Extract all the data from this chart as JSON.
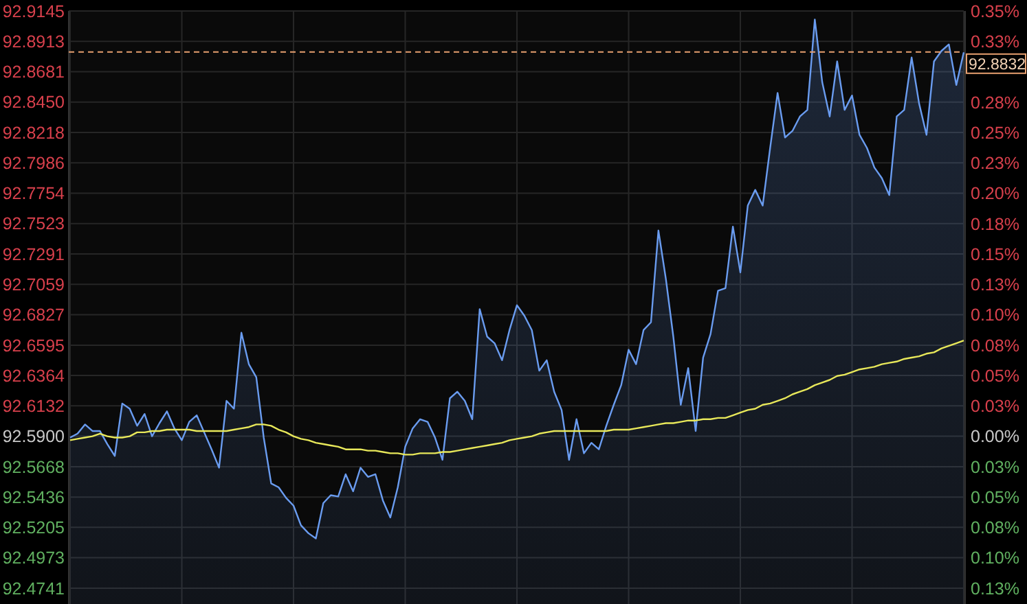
{
  "chart_data": {
    "type": "area",
    "categories": [
      null,
      null,
      null,
      null,
      null,
      null,
      null,
      null,
      null,
      null,
      null,
      null,
      null,
      null,
      null,
      null,
      null,
      null,
      null,
      null,
      null,
      null,
      null,
      null,
      null,
      null,
      null,
      null,
      null,
      null,
      null,
      null,
      null,
      null,
      null,
      null,
      null,
      null,
      null,
      null,
      null,
      null,
      null,
      null,
      null,
      null,
      null,
      null,
      null,
      null,
      null,
      null,
      null,
      null,
      null,
      null,
      null,
      null,
      null,
      null,
      null,
      null,
      null,
      null,
      null,
      null,
      null,
      null,
      null,
      null,
      null,
      null,
      null,
      null,
      null,
      null,
      null,
      null,
      null,
      null,
      null,
      null,
      null,
      null,
      null,
      null,
      null,
      null,
      null,
      null,
      null,
      null,
      null,
      null,
      null,
      null,
      null,
      null,
      null,
      null,
      null,
      null,
      null,
      null,
      null,
      null,
      null,
      null,
      null,
      null,
      null,
      null,
      null,
      null,
      null,
      null,
      null,
      null,
      null,
      null,
      null
    ],
    "series": [
      {
        "color": "#6a9cf0",
        "values": [
          92.589,
          92.592,
          92.599,
          92.594,
          92.594,
          92.584,
          92.575,
          92.615,
          92.611,
          92.598,
          92.607,
          92.59,
          92.6,
          92.609,
          92.596,
          92.587,
          92.601,
          92.606,
          92.593,
          92.58,
          92.566,
          92.617,
          92.611,
          92.669,
          92.645,
          92.635,
          92.589,
          92.554,
          92.551,
          92.543,
          92.537,
          92.522,
          92.516,
          92.512,
          92.539,
          92.545,
          92.544,
          92.561,
          92.548,
          92.566,
          92.559,
          92.561,
          92.541,
          92.528,
          92.551,
          92.582,
          92.596,
          92.603,
          92.601,
          92.589,
          92.572,
          92.619,
          92.624,
          92.617,
          92.603,
          92.687,
          92.666,
          92.661,
          92.648,
          92.671,
          92.69,
          92.682,
          92.671,
          92.64,
          92.648,
          92.624,
          92.61,
          92.572,
          92.603,
          92.577,
          92.585,
          92.58,
          92.598,
          92.614,
          92.629,
          92.656,
          92.645,
          92.671,
          92.677,
          92.747,
          92.71,
          92.666,
          92.614,
          92.642,
          92.594,
          92.65,
          92.668,
          92.701,
          92.703,
          92.75,
          92.715,
          92.766,
          92.778,
          92.766,
          92.81,
          92.852,
          92.818,
          92.823,
          92.834,
          92.839,
          92.908,
          92.86,
          92.834,
          92.876,
          92.839,
          92.85,
          92.82,
          92.81,
          92.795,
          92.787,
          92.774,
          92.834,
          92.839,
          92.879,
          92.844,
          92.82,
          92.876,
          92.884,
          92.889,
          92.858,
          92.883
        ]
      },
      {
        "type": "line",
        "color": "#e8e85a",
        "values": [
          92.587,
          92.588,
          92.589,
          92.59,
          92.592,
          92.59,
          92.589,
          92.589,
          92.59,
          92.593,
          92.593,
          92.594,
          92.594,
          92.595,
          92.595,
          92.595,
          92.595,
          92.594,
          92.594,
          92.594,
          92.594,
          92.594,
          92.595,
          92.596,
          92.597,
          92.599,
          92.599,
          92.598,
          92.595,
          92.593,
          92.59,
          92.588,
          92.587,
          92.585,
          92.584,
          92.583,
          92.582,
          92.58,
          92.58,
          92.58,
          92.579,
          92.579,
          92.578,
          92.577,
          92.577,
          92.576,
          92.576,
          92.577,
          92.577,
          92.577,
          92.578,
          92.578,
          92.579,
          92.58,
          92.581,
          92.582,
          92.583,
          92.584,
          92.585,
          92.587,
          92.588,
          92.589,
          92.59,
          92.592,
          92.593,
          92.594,
          92.594,
          92.594,
          92.594,
          92.594,
          92.594,
          92.594,
          92.594,
          92.595,
          92.595,
          92.595,
          92.596,
          92.597,
          92.598,
          92.599,
          92.6,
          92.6,
          92.601,
          92.602,
          92.602,
          92.603,
          92.603,
          92.604,
          92.604,
          92.606,
          92.608,
          92.61,
          92.611,
          92.614,
          92.615,
          92.617,
          92.619,
          92.622,
          92.624,
          92.626,
          92.629,
          92.631,
          92.633,
          92.636,
          92.637,
          92.639,
          92.641,
          92.642,
          92.643,
          92.645,
          92.646,
          92.647,
          92.649,
          92.65,
          92.651,
          92.653,
          92.654,
          92.657,
          92.659,
          92.661,
          92.663
        ]
      }
    ],
    "ylim": [
      92.462,
      92.9145
    ],
    "yticks": [
      92.4741,
      92.4973,
      92.5205,
      92.5436,
      92.5668,
      {
        "value": 92.59,
        "label": "92.5900"
      },
      92.6132,
      92.6364,
      92.6595,
      92.6827,
      92.7059,
      92.7291,
      92.7523,
      92.7754,
      92.7986,
      92.8218,
      {
        "value": 92.845,
        "label": "92.8450"
      },
      92.8681,
      92.8913,
      92.9145
    ],
    "y2lim": [
      -0.138,
      0.35
    ],
    "y2ticks": [
      {
        "value": -0.125,
        "label": "0.13%"
      },
      {
        "value": -0.1,
        "label": "0.10%"
      },
      {
        "value": -0.075,
        "label": "0.08%"
      },
      {
        "value": -0.05,
        "label": "0.05%"
      },
      {
        "value": -0.025,
        "label": "0.03%"
      },
      {
        "value": 0,
        "label": "0.00%"
      },
      {
        "value": 0.025,
        "label": "0.03%"
      },
      {
        "value": 0.05,
        "label": "0.05%"
      },
      {
        "value": 0.075,
        "label": "0.08%"
      },
      {
        "value": 0.1,
        "label": "0.10%"
      },
      {
        "value": 0.125,
        "label": "0.13%"
      },
      {
        "value": 0.15,
        "label": "0.15%"
      },
      {
        "value": 0.175,
        "label": "0.18%"
      },
      {
        "value": 0.2,
        "label": "0.20%"
      },
      {
        "value": 0.225,
        "label": "0.23%"
      },
      {
        "value": 0.25,
        "label": "0.25%"
      },
      {
        "value": 0.275,
        "label": "0.28%"
      },
      {
        "value": 0.325,
        "label": "0.33%"
      },
      {
        "value": 0.35,
        "label": "0.35%"
      }
    ],
    "grid": true,
    "ref_lines": [
      {
        "axis": "y",
        "value": 92.8832,
        "label": "92.8832",
        "color": "#e8a070",
        "line_style": "dashed"
      }
    ]
  }
}
